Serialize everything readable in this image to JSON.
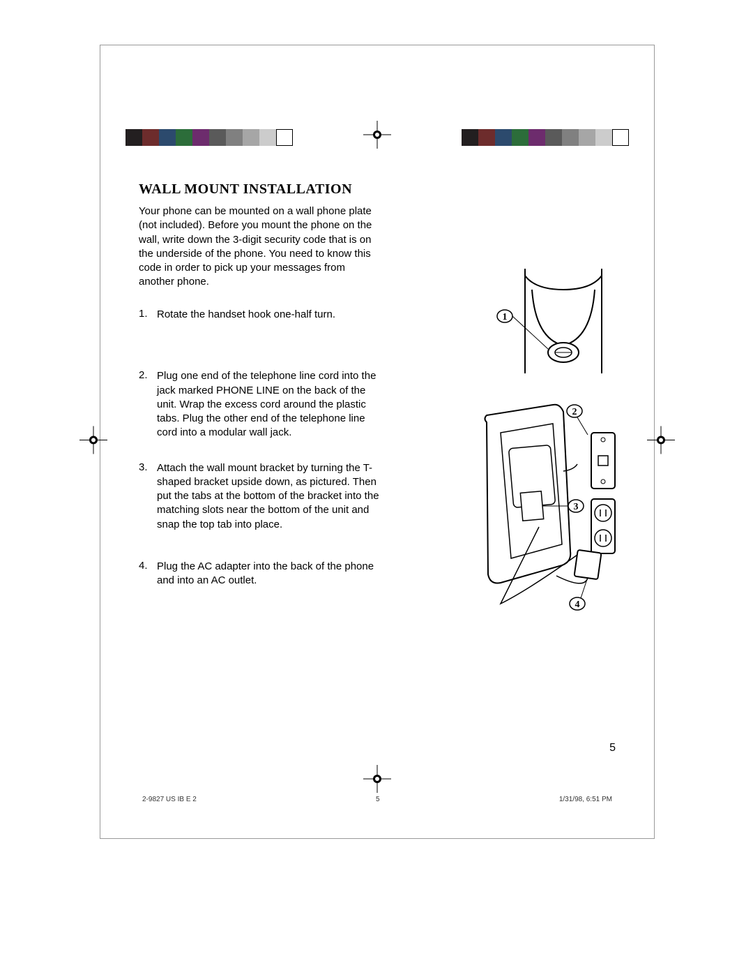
{
  "heading": "WALL MOUNT INSTALLATION",
  "intro": "Your phone can be mounted on a wall phone plate (not included). Before you mount the phone on the wall, write down the 3-digit security code that is on the underside of the phone. You need to know this code in order to pick up your messages from another phone.",
  "steps": [
    {
      "n": "1.",
      "text": "Rotate the handset hook one-half turn."
    },
    {
      "n": "2.",
      "text": "Plug one end of the telephone line cord into the jack marked PHONE LINE on the back of the unit. Wrap the excess cord around the plastic tabs. Plug the other end of the telephone line cord into a modular wall jack."
    },
    {
      "n": "3.",
      "text": "Attach the wall mount bracket by turning the T-shaped bracket upside down, as pictured. Then put the tabs at the bottom of the bracket into the matching slots near the bottom of the unit and snap the top tab into place."
    },
    {
      "n": "4.",
      "text": "Plug the AC adapter into the back of the phone and into an AC outlet."
    }
  ],
  "callouts": {
    "c1": "1",
    "c2": "2",
    "c3": "3",
    "c4": "4"
  },
  "page_number": "5",
  "footer": {
    "doc": "2-9827 US IB E 2",
    "mid": "5",
    "date": "1/31/98, 6:51 PM"
  },
  "regbar_left_colors": [
    "#231f20",
    "#6d2c2c",
    "#2c4a6d",
    "#2c6d3a",
    "#6d2c6d",
    "#5a5a5a",
    "#808080",
    "#a6a6a6",
    "#cccccc",
    "#ffffff"
  ],
  "regbar_right_colors": [
    "#231f20",
    "#6d2c2c",
    "#2c4a6d",
    "#2c6d3a",
    "#6d2c6d",
    "#5a5a5a",
    "#808080",
    "#a6a6a6",
    "#cccccc",
    "#ffffff"
  ],
  "font": {
    "body_size": 15,
    "heading_size": 20,
    "callout_size": 14,
    "footer_size": 10
  },
  "colors": {
    "text": "#000000",
    "page_border": "#999999",
    "bg": "#ffffff"
  },
  "figures": {
    "fig1": {
      "type": "line-art",
      "desc": "phone top detail with handset hook"
    },
    "fig2": {
      "type": "line-art",
      "desc": "phone back with wall plate, bracket, AC adapter"
    }
  }
}
